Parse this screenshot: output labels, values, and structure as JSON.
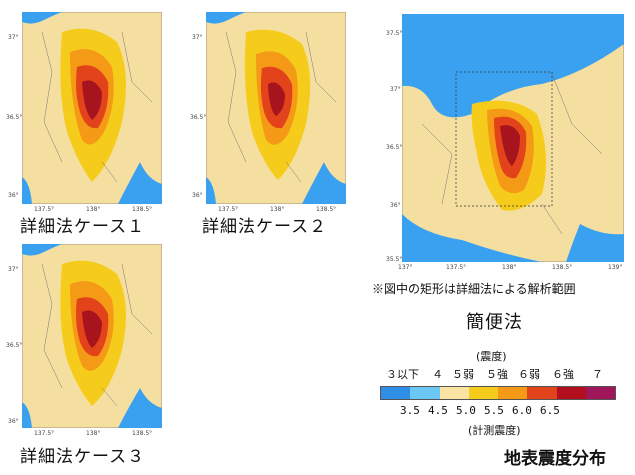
{
  "figure_title": "地表震度分布",
  "maps": {
    "case1": {
      "caption": "詳細法ケース１",
      "y_ticks": [
        "37°",
        "36.5°",
        "36°"
      ],
      "x_ticks": [
        "137.5°",
        "138°",
        "138.5°"
      ]
    },
    "case2": {
      "caption": "詳細法ケース２",
      "y_ticks": [
        "37°",
        "36.5°",
        "36°"
      ],
      "x_ticks": [
        "137.5°",
        "138°",
        "138.5°"
      ]
    },
    "case3": {
      "caption": "詳細法ケース３",
      "y_ticks": [
        "37°",
        "36.5°",
        "36°"
      ],
      "x_ticks": [
        "137.5°",
        "138°",
        "138.5°"
      ]
    },
    "simple": {
      "title": "簡便法",
      "note": "※図中の矩形は詳細法による解析範囲",
      "y_ticks": [
        "37.5°",
        "37°",
        "36.5°",
        "36°",
        "35.5°"
      ],
      "x_ticks": [
        "137°",
        "137.5°",
        "138°",
        "138.5°",
        "139°"
      ]
    }
  },
  "legend": {
    "top_label": "(震度)",
    "top_values": [
      "３以下",
      "４",
      "５弱",
      "５強",
      "６弱",
      "６強",
      "７"
    ],
    "bottom_values": [
      "3.5",
      "4.5",
      "5.0",
      "5.5",
      "6.0",
      "6.5"
    ],
    "bottom_label": "(計測震度)",
    "colors": [
      "#2f8fe6",
      "#6cc7f5",
      "#fbe3a4",
      "#f6cc1c",
      "#f49a16",
      "#e2431a",
      "#b10e1e",
      "#a0165a"
    ]
  },
  "colors": {
    "sea": "#3aa0f0",
    "land_low": "#f5dfa0",
    "land_mid": "#f6cc1c",
    "high": "#f49a16",
    "very_high": "#e2431a",
    "max": "#a8141e"
  }
}
